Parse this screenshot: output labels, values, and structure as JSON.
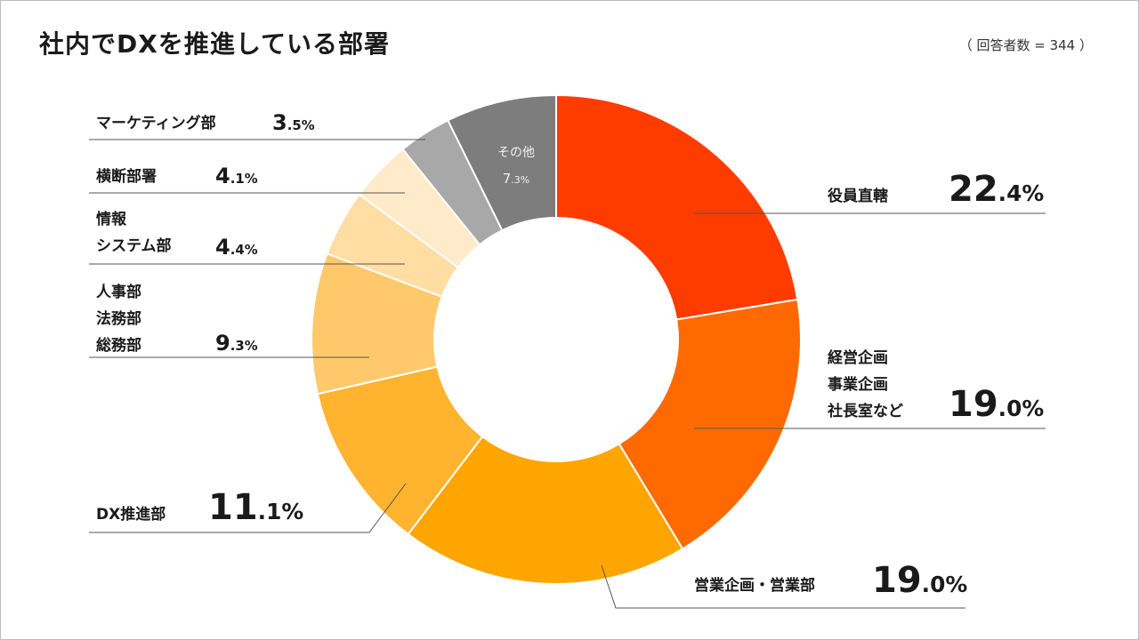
{
  "title": "社内でDXを推進している部署",
  "respondents": "（ 回答者数 = 344 ）",
  "chart_data": {
    "type": "pie",
    "variant": "donut",
    "title": "社内でDXを推進している部署",
    "unit": "%",
    "slices": [
      {
        "label": "役員直轄",
        "value": 22.4,
        "color": "#ff3c00"
      },
      {
        "label": "経営企画\n事業企画\n社長室など",
        "value": 19.0,
        "color": "#ff6a00"
      },
      {
        "label": "営業企画・営業部",
        "value": 19.0,
        "color": "#ffa500"
      },
      {
        "label": "DX推進部",
        "value": 11.1,
        "color": "#ffb32e"
      },
      {
        "label": "人事部\n法務部\n総務部",
        "value": 9.3,
        "color": "#ffc96b"
      },
      {
        "label": "情報\nシステム部",
        "value": 4.4,
        "color": "#ffdda3"
      },
      {
        "label": "横断部署",
        "value": 4.1,
        "color": "#ffebc9"
      },
      {
        "label": "マーケティング部",
        "value": 3.5,
        "color": "#a8a8a8"
      },
      {
        "label": "その他",
        "value": 7.3,
        "color": "#7d7d7d"
      }
    ]
  },
  "labels": {
    "s0": {
      "name": [
        "役員直轄"
      ],
      "int": "22",
      "dec": ".4%"
    },
    "s1": {
      "name": [
        "経営企画",
        "事業企画",
        "社長室など"
      ],
      "int": "19",
      "dec": ".0%"
    },
    "s2": {
      "name": [
        "営業企画・営業部"
      ],
      "int": "19",
      "dec": ".0%"
    },
    "s3": {
      "name": [
        "DX推進部"
      ],
      "int": "11",
      "dec": ".1%"
    },
    "s4": {
      "name": [
        "人事部",
        "法務部",
        "総務部"
      ],
      "int": "9",
      "dec": ".3%"
    },
    "s5": {
      "name": [
        "情報",
        "システム部"
      ],
      "int": "4",
      "dec": ".4%"
    },
    "s6": {
      "name": [
        "横断部署"
      ],
      "int": "4",
      "dec": ".1%"
    },
    "s7": {
      "name": [
        "マーケティング部"
      ],
      "int": "3",
      "dec": ".5%"
    },
    "s8": {
      "name": [
        "その他"
      ],
      "int": "7",
      "dec": ".3%"
    }
  }
}
